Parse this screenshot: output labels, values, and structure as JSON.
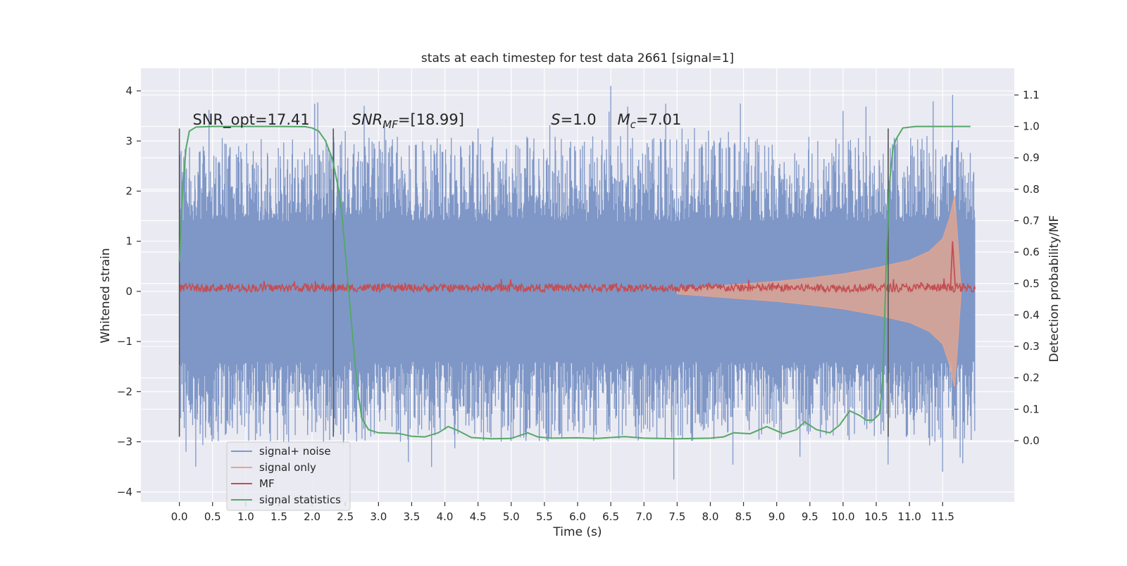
{
  "chart_data": {
    "type": "line",
    "title": "stats at each timestep for test data 2661 [signal=1]",
    "xlabel": "Time (s)",
    "ylabel_left": "Whitened strain",
    "ylabel_right": "Detection probability/MF",
    "xlim": [
      -0.58,
      12.58
    ],
    "ylim_left": [
      -4.2,
      4.45
    ],
    "ylim_right": [
      -0.195,
      1.185
    ],
    "x_ticks": [
      0.0,
      0.5,
      1.0,
      1.5,
      2.0,
      2.5,
      3.0,
      3.5,
      4.0,
      4.5,
      5.0,
      5.5,
      6.0,
      6.5,
      7.0,
      7.5,
      8.0,
      8.5,
      9.0,
      9.5,
      10.0,
      10.5,
      11.0,
      11.5
    ],
    "x_tick_labels": [
      "0.0",
      "0.5",
      "1.0",
      "1.5",
      "2.0",
      "2.5",
      "3.0",
      "3.5",
      "4.0",
      "4.5",
      "5.0",
      "5.5",
      "6.0",
      "6.5",
      "7.0",
      "7.5",
      "8.0",
      "8.5",
      "9.0",
      "9.5",
      "10.0",
      "10.5",
      "11.0",
      "11.5"
    ],
    "y_left_ticks": [
      -4,
      -3,
      -2,
      -1,
      0,
      1,
      2,
      3,
      4
    ],
    "y_left_tick_labels": [
      "−4",
      "−3",
      "−2",
      "−1",
      "0",
      "1",
      "2",
      "3",
      "4"
    ],
    "y_right_ticks": [
      0.0,
      0.1,
      0.2,
      0.3,
      0.4,
      0.5,
      0.6,
      0.7,
      0.8,
      0.9,
      1.0,
      1.1
    ],
    "y_right_tick_labels": [
      "0.0",
      "0.1",
      "0.2",
      "0.3",
      "0.4",
      "0.5",
      "0.6",
      "0.7",
      "0.8",
      "0.9",
      "1.0",
      "1.1"
    ],
    "grid": true,
    "legend_position": "lower-left",
    "series": [
      {
        "name": "signal+ noise",
        "color": "#7f97c7",
        "axis": "left",
        "kind": "noise-band",
        "x_range": [
          0.0,
          11.99
        ],
        "typical_amplitude": 1.4,
        "peak_amplitude": 4.1
      },
      {
        "name": "signal only",
        "color": "#e9a58b",
        "axis": "left",
        "kind": "chirp-envelope",
        "envelope": [
          [
            7.5,
            0.05
          ],
          [
            8.0,
            0.1
          ],
          [
            8.5,
            0.15
          ],
          [
            9.0,
            0.2
          ],
          [
            9.5,
            0.27
          ],
          [
            10.0,
            0.35
          ],
          [
            10.5,
            0.47
          ],
          [
            11.0,
            0.62
          ],
          [
            11.3,
            0.8
          ],
          [
            11.5,
            1.05
          ],
          [
            11.6,
            1.45
          ],
          [
            11.68,
            1.9
          ],
          [
            11.72,
            1.2
          ],
          [
            11.78,
            0.0
          ]
        ]
      },
      {
        "name": "MF",
        "color": "#c44e52",
        "axis": "left",
        "kind": "noisy-flat",
        "x_range": [
          0.0,
          11.99
        ],
        "level": 0.07,
        "peak": {
          "x": 11.65,
          "y": 1.0
        }
      },
      {
        "name": "signal statistics",
        "color": "#55a868",
        "axis": "right",
        "points": [
          [
            0.0,
            0.57
          ],
          [
            0.05,
            0.8
          ],
          [
            0.1,
            0.93
          ],
          [
            0.15,
            0.985
          ],
          [
            0.25,
            0.998
          ],
          [
            0.5,
            1.0
          ],
          [
            1.0,
            1.0
          ],
          [
            1.5,
            1.0
          ],
          [
            1.9,
            0.999
          ],
          [
            2.0,
            0.995
          ],
          [
            2.1,
            0.985
          ],
          [
            2.2,
            0.955
          ],
          [
            2.3,
            0.9
          ],
          [
            2.4,
            0.8
          ],
          [
            2.45,
            0.72
          ],
          [
            2.5,
            0.6
          ],
          [
            2.55,
            0.48
          ],
          [
            2.6,
            0.36
          ],
          [
            2.65,
            0.24
          ],
          [
            2.7,
            0.14
          ],
          [
            2.75,
            0.07
          ],
          [
            2.85,
            0.035
          ],
          [
            3.0,
            0.025
          ],
          [
            3.3,
            0.023
          ],
          [
            3.5,
            0.014
          ],
          [
            3.7,
            0.012
          ],
          [
            3.9,
            0.025
          ],
          [
            4.05,
            0.045
          ],
          [
            4.2,
            0.032
          ],
          [
            4.4,
            0.01
          ],
          [
            4.7,
            0.006
          ],
          [
            5.0,
            0.007
          ],
          [
            5.15,
            0.018
          ],
          [
            5.25,
            0.025
          ],
          [
            5.4,
            0.012
          ],
          [
            5.6,
            0.008
          ],
          [
            6.0,
            0.009
          ],
          [
            6.3,
            0.007
          ],
          [
            6.7,
            0.013
          ],
          [
            7.0,
            0.008
          ],
          [
            7.5,
            0.006
          ],
          [
            8.0,
            0.008
          ],
          [
            8.2,
            0.012
          ],
          [
            8.35,
            0.025
          ],
          [
            8.6,
            0.022
          ],
          [
            8.85,
            0.045
          ],
          [
            9.1,
            0.022
          ],
          [
            9.3,
            0.035
          ],
          [
            9.42,
            0.06
          ],
          [
            9.6,
            0.035
          ],
          [
            9.8,
            0.025
          ],
          [
            9.95,
            0.05
          ],
          [
            10.1,
            0.095
          ],
          [
            10.25,
            0.08
          ],
          [
            10.35,
            0.065
          ],
          [
            10.45,
            0.065
          ],
          [
            10.55,
            0.085
          ],
          [
            10.6,
            0.2
          ],
          [
            10.65,
            0.55
          ],
          [
            10.7,
            0.82
          ],
          [
            10.75,
            0.93
          ],
          [
            10.8,
            0.96
          ],
          [
            10.9,
            0.995
          ],
          [
            11.1,
            1.0
          ],
          [
            11.5,
            1.0
          ],
          [
            11.92,
            1.0
          ]
        ]
      }
    ],
    "vertical_lines": [
      0.0,
      2.32,
      10.68
    ],
    "annotations": [
      {
        "text": "SNR_opt=17.41",
        "x": 0.2,
        "y": 3.3
      },
      {
        "base": "SNR",
        "sub": "MF",
        "rest": "=[18.99]",
        "x": 2.6,
        "y": 3.3
      },
      {
        "base": "S",
        "sub": "",
        "rest": "=1.0",
        "x": 5.6,
        "y": 3.3
      },
      {
        "base": "M",
        "sub": "c",
        "rest": "=7.01",
        "x": 6.6,
        "y": 3.3
      }
    ]
  }
}
